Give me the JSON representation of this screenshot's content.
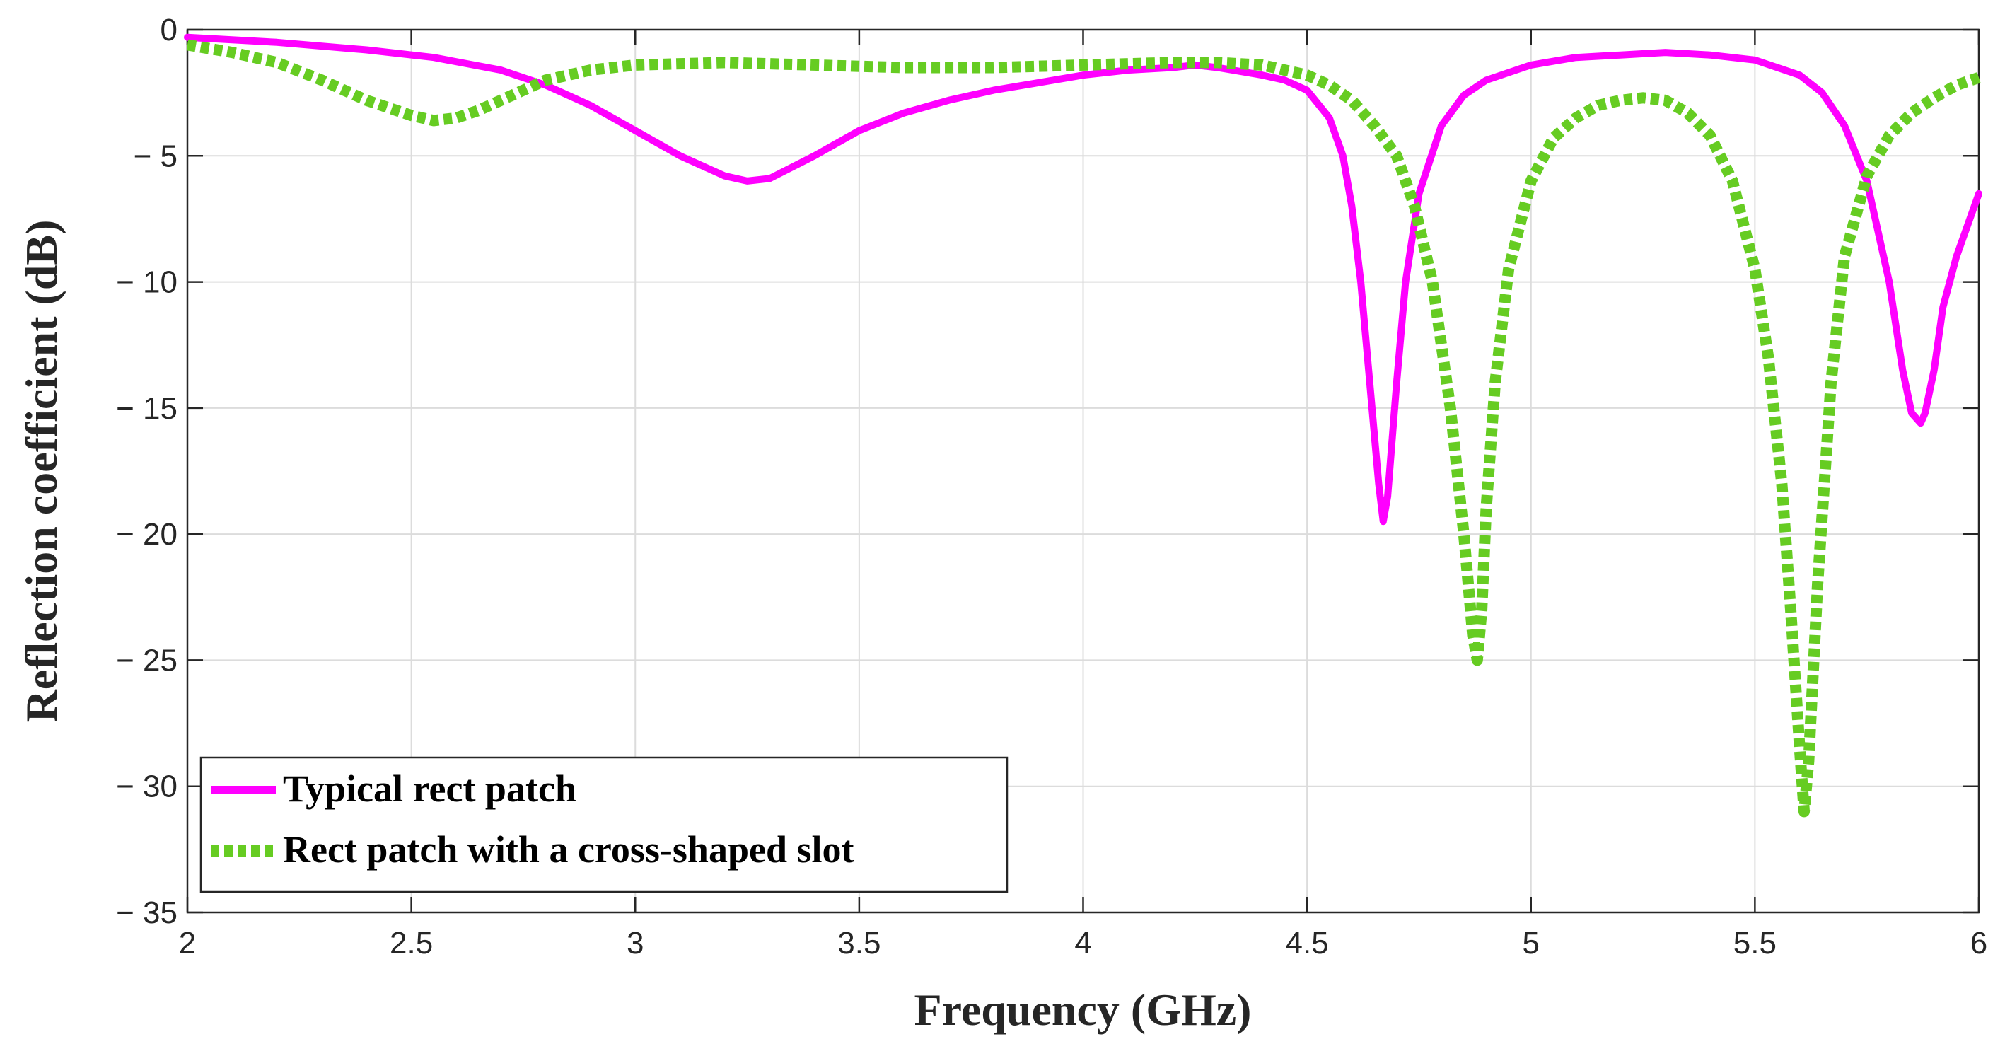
{
  "chart_data": {
    "type": "line",
    "title": "",
    "xlabel": "Frequency (GHz)",
    "ylabel": "Reflection coefficient (dB)",
    "xlim": [
      2,
      6
    ],
    "ylim": [
      -35,
      0
    ],
    "grid": true,
    "legend_position": "bottom-left",
    "x_ticks": [
      2,
      2.5,
      3,
      3.5,
      4,
      4.5,
      5,
      5.5,
      6
    ],
    "x_tick_labels": [
      "2",
      "2.5",
      "3",
      "3.5",
      "4",
      "4.5",
      "5",
      "5.5",
      "6"
    ],
    "y_ticks": [
      0,
      -5,
      -10,
      -15,
      -20,
      -25,
      -30,
      -35
    ],
    "y_tick_labels": [
      "0",
      "− 5",
      "− 10",
      "− 15",
      "− 20",
      "− 25",
      "− 30",
      "− 35"
    ],
    "series": [
      {
        "name": "Typical rect patch",
        "color": "#ff00ff",
        "style": "solid",
        "x": [
          2.0,
          2.2,
          2.4,
          2.55,
          2.7,
          2.8,
          2.9,
          3.0,
          3.1,
          3.2,
          3.25,
          3.3,
          3.4,
          3.5,
          3.6,
          3.7,
          3.8,
          3.9,
          4.0,
          4.1,
          4.2,
          4.25,
          4.3,
          4.4,
          4.45,
          4.5,
          4.55,
          4.58,
          4.6,
          4.62,
          4.64,
          4.66,
          4.67,
          4.68,
          4.7,
          4.72,
          4.75,
          4.8,
          4.85,
          4.9,
          5.0,
          5.1,
          5.2,
          5.3,
          5.4,
          5.5,
          5.6,
          5.65,
          5.7,
          5.75,
          5.8,
          5.83,
          5.85,
          5.87,
          5.88,
          5.9,
          5.92,
          5.95,
          6.0
        ],
        "y": [
          -0.3,
          -0.5,
          -0.8,
          -1.1,
          -1.6,
          -2.2,
          -3.0,
          -4.0,
          -5.0,
          -5.8,
          -6.0,
          -5.9,
          -5.0,
          -4.0,
          -3.3,
          -2.8,
          -2.4,
          -2.1,
          -1.8,
          -1.6,
          -1.5,
          -1.4,
          -1.5,
          -1.8,
          -2.0,
          -2.4,
          -3.5,
          -5.0,
          -7.0,
          -10.0,
          -14.0,
          -18.0,
          -19.5,
          -18.5,
          -14.0,
          -10.0,
          -6.5,
          -3.8,
          -2.6,
          -2.0,
          -1.4,
          -1.1,
          -1.0,
          -0.9,
          -1.0,
          -1.2,
          -1.8,
          -2.5,
          -3.8,
          -6.0,
          -10.0,
          -13.5,
          -15.2,
          -15.6,
          -15.2,
          -13.5,
          -11.0,
          -9.0,
          -6.5
        ]
      },
      {
        "name": "Rect patch with a cross-shaped slot",
        "color": "#66cc22",
        "style": "dotted",
        "x": [
          2.0,
          2.1,
          2.2,
          2.3,
          2.4,
          2.5,
          2.55,
          2.6,
          2.65,
          2.7,
          2.8,
          2.9,
          3.0,
          3.2,
          3.4,
          3.6,
          3.8,
          4.0,
          4.2,
          4.3,
          4.4,
          4.5,
          4.55,
          4.6,
          4.65,
          4.7,
          4.74,
          4.78,
          4.82,
          4.85,
          4.87,
          4.88,
          4.89,
          4.9,
          4.92,
          4.95,
          5.0,
          5.05,
          5.1,
          5.15,
          5.2,
          5.25,
          5.3,
          5.35,
          5.4,
          5.45,
          5.5,
          5.53,
          5.56,
          5.58,
          5.6,
          5.61,
          5.62,
          5.64,
          5.67,
          5.7,
          5.75,
          5.8,
          5.85,
          5.9,
          5.95,
          6.0
        ],
        "y": [
          -0.6,
          -0.9,
          -1.3,
          -2.0,
          -2.8,
          -3.4,
          -3.6,
          -3.5,
          -3.2,
          -2.8,
          -2.0,
          -1.6,
          -1.4,
          -1.3,
          -1.4,
          -1.5,
          -1.5,
          -1.4,
          -1.3,
          -1.3,
          -1.4,
          -1.8,
          -2.2,
          -2.8,
          -3.8,
          -5.0,
          -7.0,
          -10.0,
          -15.0,
          -20.0,
          -24.0,
          -25.0,
          -23.0,
          -19.0,
          -14.0,
          -9.5,
          -6.0,
          -4.3,
          -3.5,
          -3.0,
          -2.8,
          -2.7,
          -2.8,
          -3.3,
          -4.2,
          -6.0,
          -9.5,
          -13.0,
          -18.0,
          -23.0,
          -28.5,
          -31.0,
          -29.0,
          -22.0,
          -14.0,
          -9.0,
          -5.8,
          -4.2,
          -3.3,
          -2.7,
          -2.2,
          -1.9
        ]
      }
    ]
  }
}
